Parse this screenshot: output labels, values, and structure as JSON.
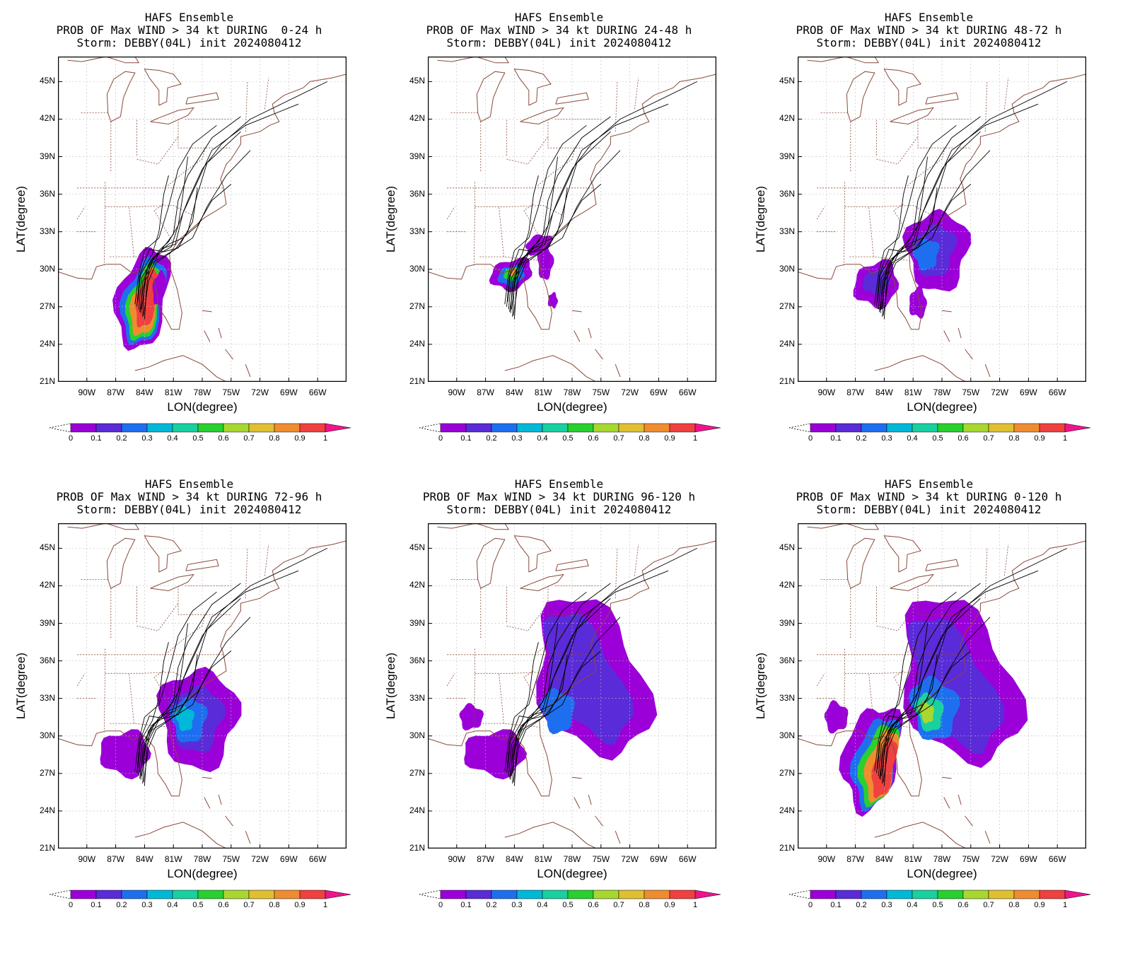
{
  "colors": {
    "scale": [
      "#9b00d8",
      "#5a2bd8",
      "#1e6ff0",
      "#00b8d8",
      "#18d0a0",
      "#28d030",
      "#a8d830",
      "#e0c030",
      "#f08c30",
      "#f04040"
    ],
    "extreme_high": "#f0148c",
    "coast": "#8a4a3a",
    "track": "#000000"
  },
  "axes": {
    "xlabel": "LON(degree)",
    "ylabel": "LAT(degree)",
    "x_ticks": [
      "90W",
      "87W",
      "84W",
      "81W",
      "78W",
      "75W",
      "72W",
      "69W",
      "66W"
    ],
    "y_ticks": [
      "45N",
      "42N",
      "39N",
      "36N",
      "33N",
      "30N",
      "27N",
      "24N",
      "21N"
    ],
    "colorbar_ticks": [
      "0",
      "0.1",
      "0.2",
      "0.3",
      "0.4",
      "0.5",
      "0.6",
      "0.7",
      "0.8",
      "0.9",
      "1"
    ]
  },
  "panels": [
    {
      "line1": "HAFS Ensemble",
      "line2": "PROB OF Max WIND > 34 kt DURING  0-24 h",
      "line3": "Storm: DEBBY(04L) init 2024080412"
    },
    {
      "line1": "HAFS Ensemble",
      "line2": "PROB OF Max WIND > 34 kt DURING 24-48 h",
      "line3": "Storm: DEBBY(04L) init 2024080412"
    },
    {
      "line1": "HAFS Ensemble",
      "line2": "PROB OF Max WIND > 34 kt DURING 48-72 h",
      "line3": "Storm: DEBBY(04L) init 2024080412"
    },
    {
      "line1": "HAFS Ensemble",
      "line2": "PROB OF Max WIND > 34 kt DURING 72-96 h",
      "line3": "Storm: DEBBY(04L) init 2024080412"
    },
    {
      "line1": "HAFS Ensemble",
      "line2": "PROB OF Max WIND > 34 kt DURING 96-120 h",
      "line3": "Storm: DEBBY(04L) init 2024080412"
    },
    {
      "line1": "HAFS Ensemble",
      "line2": "PROB OF Max WIND > 34 kt DURING 0-120 h",
      "line3": "Storm: DEBBY(04L) init 2024080412"
    }
  ]
}
